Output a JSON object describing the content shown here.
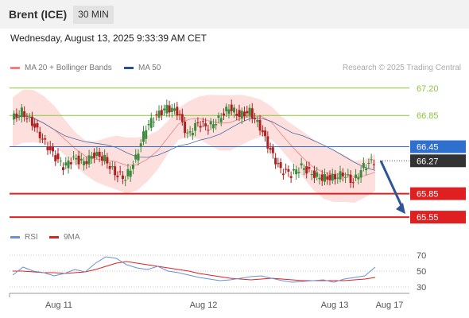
{
  "header": {
    "instrument": "Brent (ICE)",
    "timeframe": "30 MIN",
    "datetime": "Wednesday, August 13, 2025 9:33:39 AM CET"
  },
  "legend": {
    "ma20_label": "MA 20 + Bollinger Bands",
    "ma50_label": "MA 50",
    "credit": "Research © 2025 Trading Central",
    "rsi_label": "RSI",
    "rsi_ma_label": "9MA"
  },
  "colors": {
    "bullish": "#3c8a3c",
    "bearish": "#b02020",
    "bollinger_fill": "#fde0dd",
    "ma20": "#f08080",
    "ma50": "#4a6aa8",
    "support": "#e02020",
    "resistance": "#8cc63f",
    "pivot": "#2f6fce",
    "last": "#333333",
    "rsi": "#6a8fd8",
    "rsi_ma": "#e02020",
    "arrow": "#2f5597"
  },
  "chart_data": {
    "type": "candlestick",
    "xlabel": "",
    "ylabel": "",
    "ylim": [
      65.48,
      67.35
    ],
    "x_ticks": [
      "Aug 11",
      "Aug 12",
      "Aug 13",
      "Aug 17"
    ],
    "levels": [
      {
        "label": "67.20",
        "value": 67.2,
        "type": "resistance"
      },
      {
        "label": "66.85",
        "value": 66.85,
        "type": "resistance"
      },
      {
        "label": "66.45",
        "value": 66.45,
        "type": "pivot"
      },
      {
        "label": "66.27",
        "value": 66.27,
        "type": "last"
      },
      {
        "label": "65.85",
        "value": 65.85,
        "type": "support"
      },
      {
        "label": "65.55",
        "value": 65.55,
        "type": "support"
      }
    ],
    "forecast_arrow": {
      "from": 66.27,
      "to": 65.55
    },
    "price_close_path": [
      66.8,
      66.9,
      66.75,
      66.55,
      66.35,
      66.2,
      66.3,
      66.25,
      66.35,
      66.3,
      66.1,
      66.05,
      66.3,
      66.7,
      66.85,
      66.95,
      66.9,
      66.6,
      66.75,
      66.7,
      66.8,
      66.95,
      66.85,
      66.9,
      66.7,
      66.4,
      66.15,
      66.1,
      66.2,
      66.1,
      66.05,
      66.05,
      66.1,
      66.0,
      66.2,
      66.27
    ],
    "rsi": {
      "ylim": [
        25,
        75
      ],
      "ticks": [
        70,
        50,
        30
      ],
      "rsi_path": [
        45,
        55,
        50,
        48,
        44,
        47,
        52,
        49,
        60,
        68,
        66,
        58,
        54,
        52,
        56,
        50,
        48,
        45,
        42,
        40,
        38,
        39,
        41,
        43,
        44,
        41,
        38,
        36,
        37,
        38,
        39,
        36,
        40,
        42,
        44,
        55
      ],
      "ma_path": [
        50,
        50,
        49,
        48,
        48,
        47,
        48,
        49,
        52,
        56,
        60,
        62,
        60,
        58,
        56,
        54,
        52,
        50,
        47,
        45,
        43,
        41,
        40,
        39,
        40,
        41,
        40,
        39,
        38,
        38,
        38,
        38,
        38,
        39,
        40,
        42
      ]
    }
  }
}
